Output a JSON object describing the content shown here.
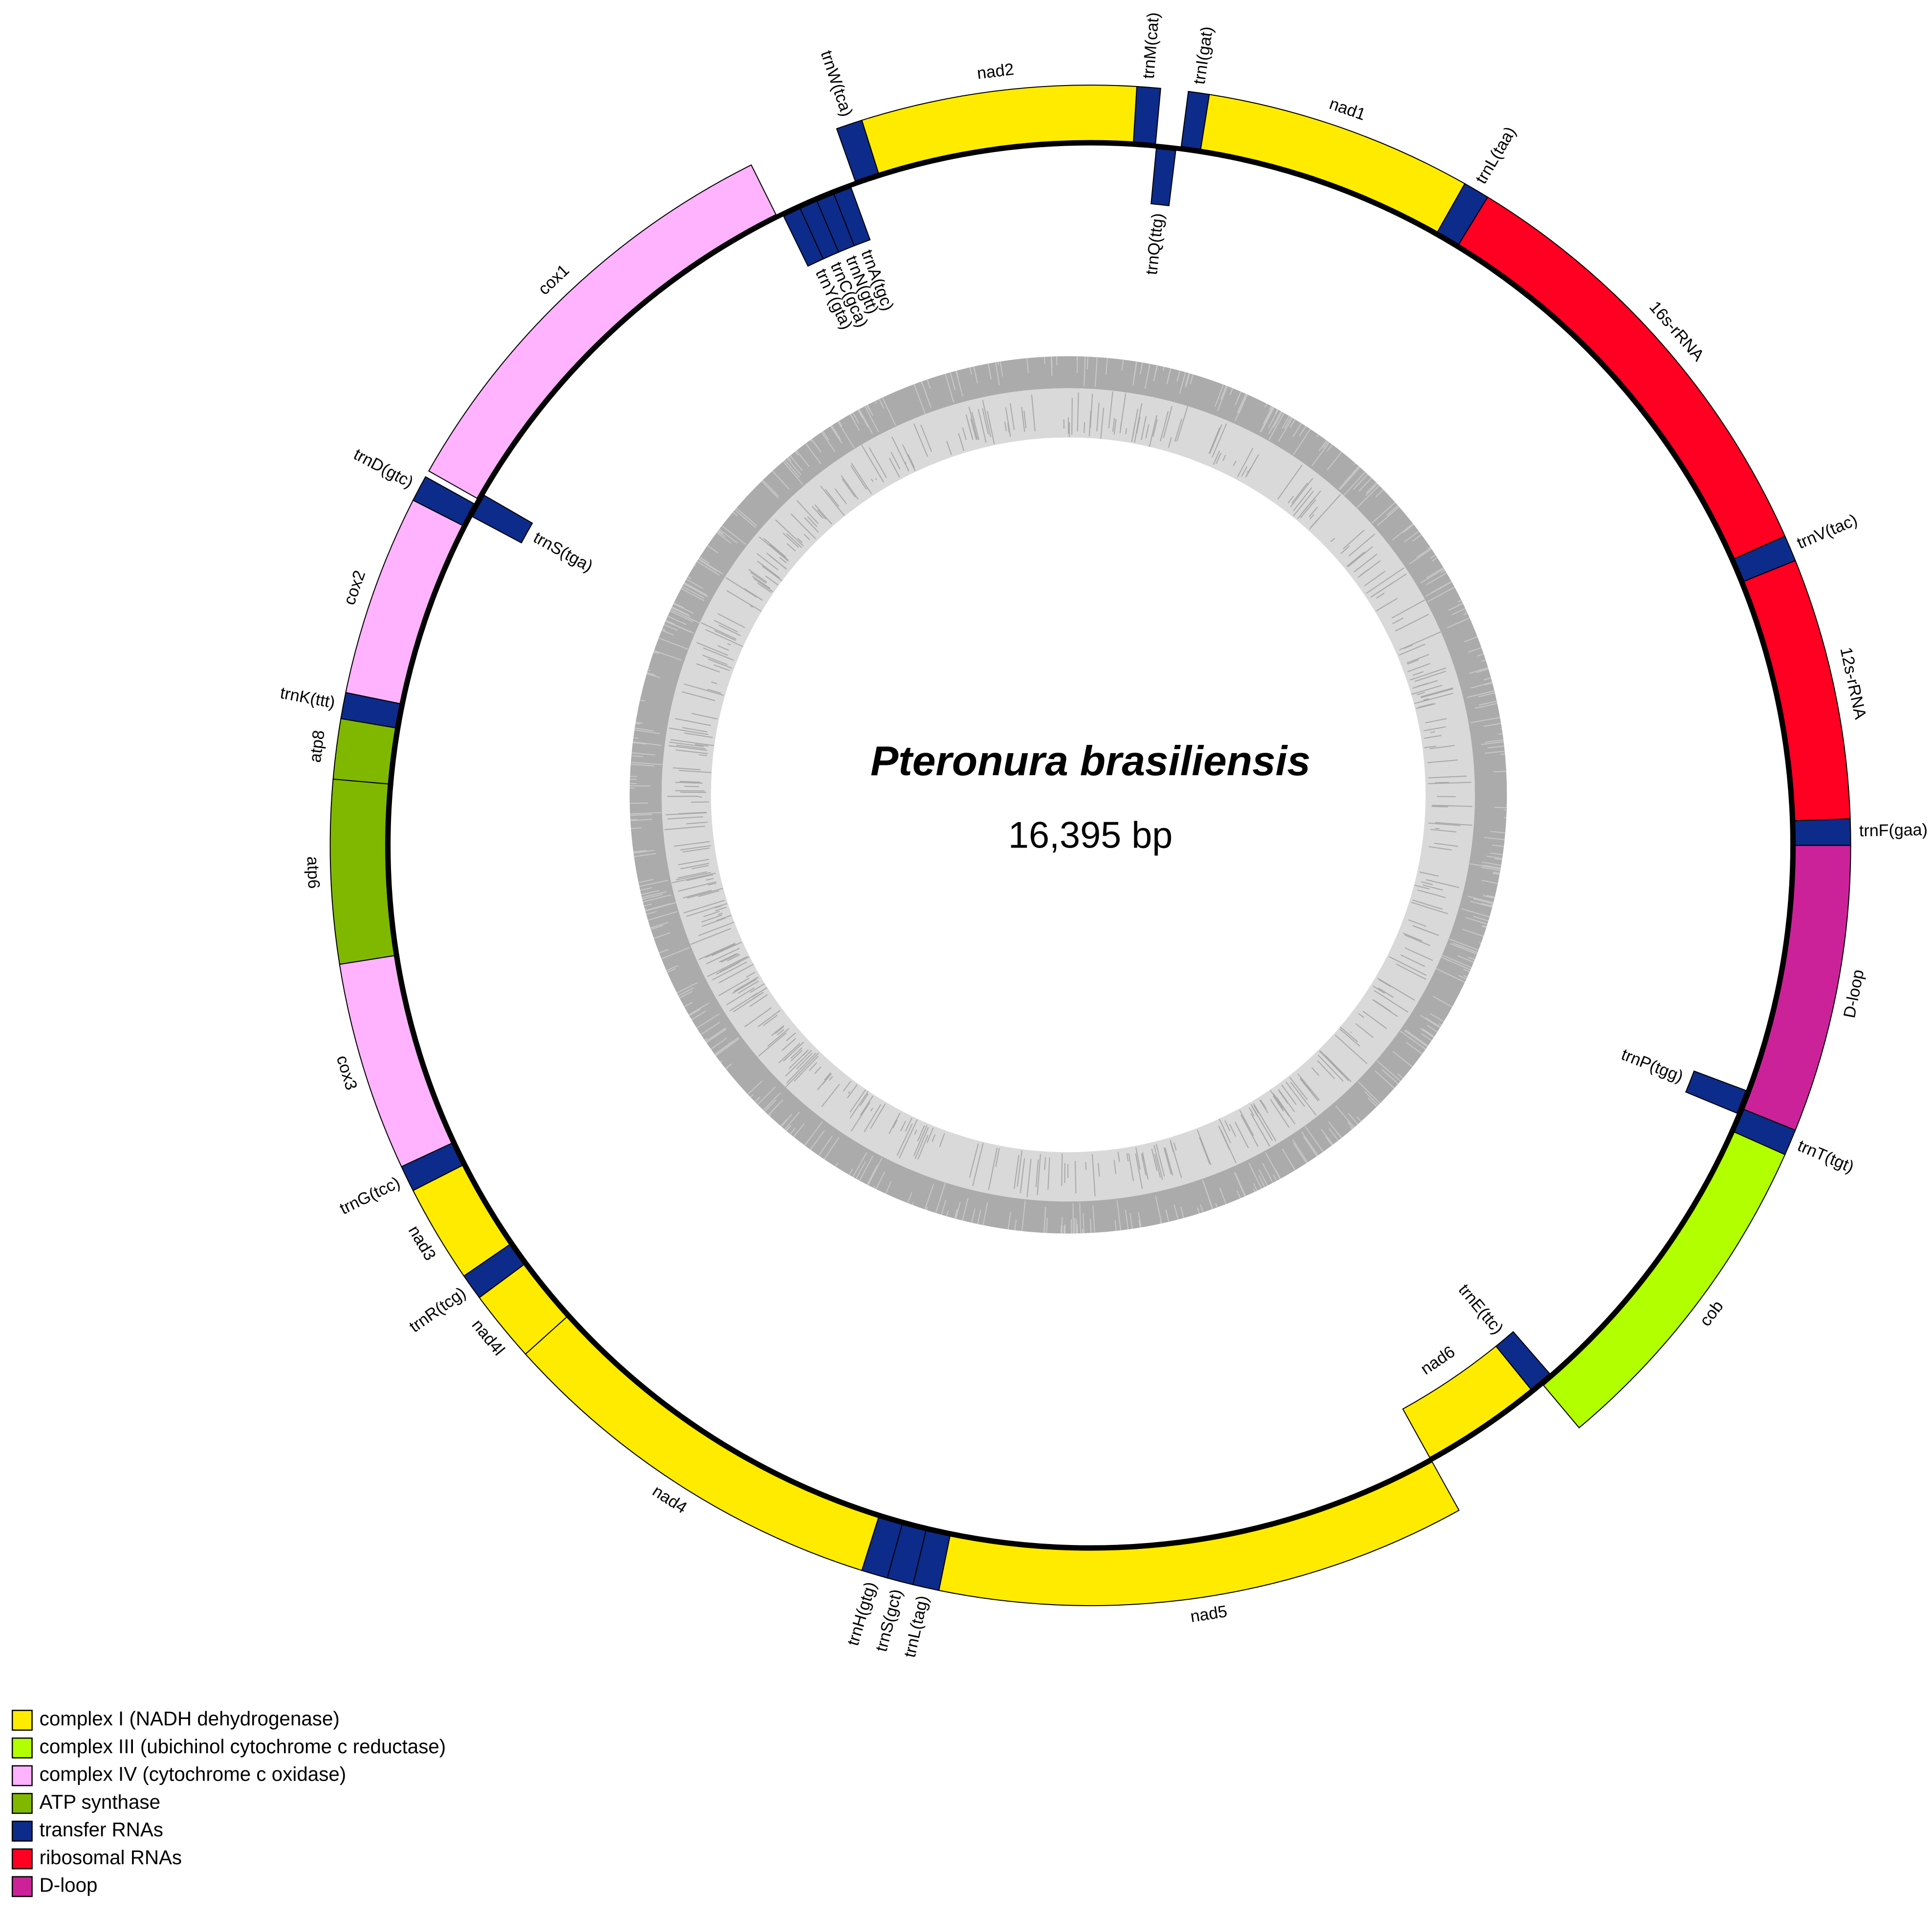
{
  "title": "Pteronura brasiliensis",
  "length_label": "16,395 bp",
  "legend": [
    {
      "label": "complex I (NADH dehydrogenase)",
      "color": "#ffeb00"
    },
    {
      "label": "complex III (ubichinol cytochrome c reductase)",
      "color": "#b2ff00"
    },
    {
      "label": "complex IV (cytochrome c oxidase)",
      "color": "#ffb3ff"
    },
    {
      "label": "ATP synthase",
      "color": "#80b800"
    },
    {
      "label": "transfer RNAs",
      "color": "#0d2b8a"
    },
    {
      "label": "ribosomal RNAs",
      "color": "#ff0022"
    },
    {
      "label": "D-loop",
      "color": "#cc2299"
    }
  ],
  "genes": [
    {
      "label": "trnW(tca)",
      "strand": "outer",
      "group": 4
    },
    {
      "label": "nad2",
      "strand": "outer",
      "group": 0
    },
    {
      "label": "trnM(cat)",
      "strand": "outer",
      "group": 4
    },
    {
      "label": "trnQ(ttg)",
      "strand": "inner",
      "group": 4
    },
    {
      "label": "trnI(gat)",
      "strand": "outer",
      "group": 4
    },
    {
      "label": "nad1",
      "strand": "outer",
      "group": 0
    },
    {
      "label": "trnL(taa)",
      "strand": "outer",
      "group": 4
    },
    {
      "label": "16s-rRNA",
      "strand": "outer",
      "group": 5
    },
    {
      "label": "trnV(tac)",
      "strand": "outer",
      "group": 4
    },
    {
      "label": "12s-rRNA",
      "strand": "outer",
      "group": 5
    },
    {
      "label": "trnF(gaa)",
      "strand": "outer",
      "group": 4
    },
    {
      "label": "D-loop",
      "strand": "outer",
      "group": 6
    },
    {
      "label": "trnP(tgg)",
      "strand": "inner",
      "group": 4
    },
    {
      "label": "trnT(tgt)",
      "strand": "outer",
      "group": 4
    },
    {
      "label": "cob",
      "strand": "outer",
      "group": 1
    },
    {
      "label": "trnE(ttc)",
      "strand": "inner",
      "group": 4
    },
    {
      "label": "nad6",
      "strand": "inner",
      "group": 0
    },
    {
      "label": "nad5",
      "strand": "outer",
      "group": 0
    },
    {
      "label": "trnL(tag)",
      "strand": "outer",
      "group": 4
    },
    {
      "label": "trnS(gct)",
      "strand": "outer",
      "group": 4
    },
    {
      "label": "trnH(gtg)",
      "strand": "outer",
      "group": 4
    },
    {
      "label": "nad4",
      "strand": "outer",
      "group": 0
    },
    {
      "label": "nad4l",
      "strand": "outer",
      "group": 0
    },
    {
      "label": "trnR(tcg)",
      "strand": "outer",
      "group": 4
    },
    {
      "label": "nad3",
      "strand": "outer",
      "group": 0
    },
    {
      "label": "trnG(tcc)",
      "strand": "outer",
      "group": 4
    },
    {
      "label": "cox3",
      "strand": "outer",
      "group": 2
    },
    {
      "label": "atp6",
      "strand": "outer",
      "group": 3
    },
    {
      "label": "atp8",
      "strand": "outer",
      "group": 3
    },
    {
      "label": "trnK(ttt)",
      "strand": "outer",
      "group": 4
    },
    {
      "label": "cox2",
      "strand": "outer",
      "group": 2
    },
    {
      "label": "trnD(gtc)",
      "strand": "outer",
      "group": 4
    },
    {
      "label": "trnS(tga)",
      "strand": "inner",
      "group": 4
    },
    {
      "label": "cox1",
      "strand": "outer",
      "group": 2
    },
    {
      "label": "trnY(gta)",
      "strand": "inner",
      "group": 4
    },
    {
      "label": "trnC(gca)",
      "strand": "inner",
      "group": 4
    },
    {
      "label": "trnN(gtt)",
      "strand": "inner",
      "group": 4
    },
    {
      "label": "trnA(tgc)",
      "strand": "inner",
      "group": 4
    }
  ]
}
